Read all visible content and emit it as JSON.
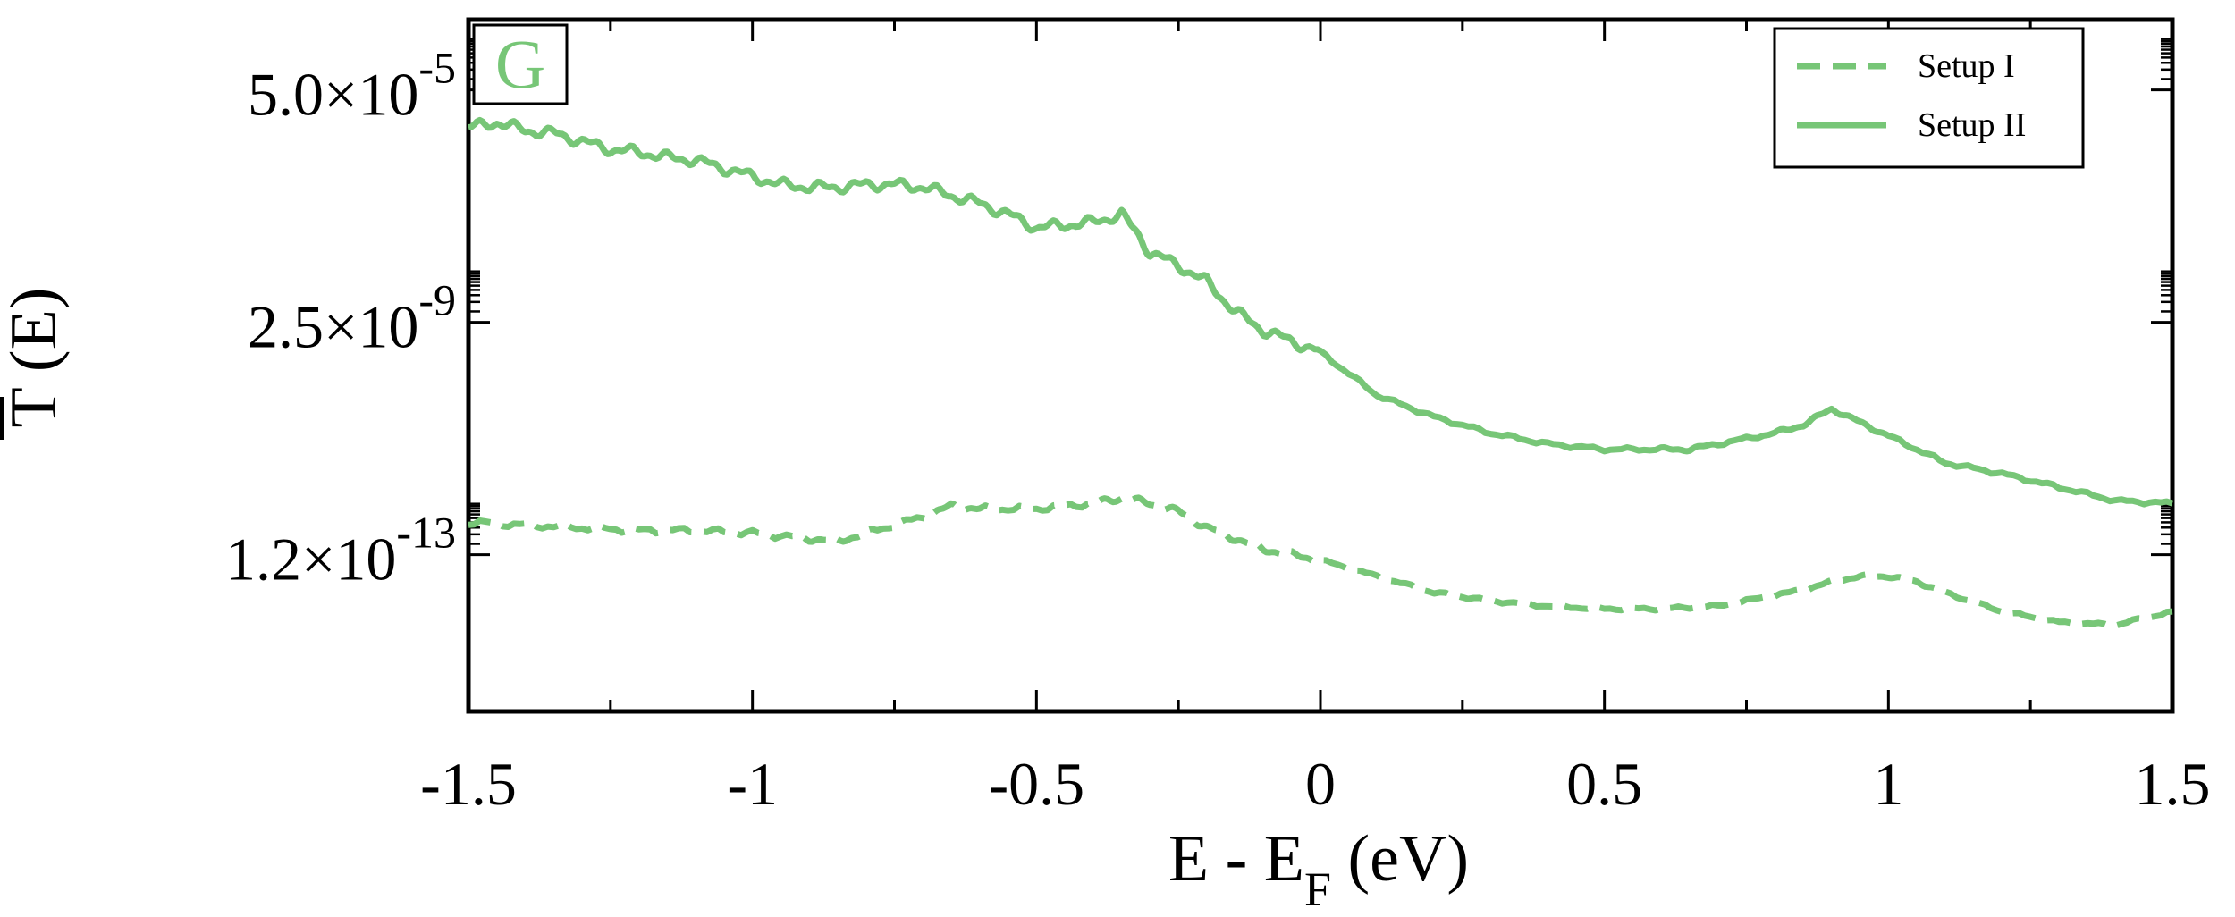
{
  "chart_data": {
    "type": "line",
    "panel_label": "G",
    "xlabel": {
      "main": "E - E",
      "sub": "F",
      "unit": " (eV)"
    },
    "ylabel": {
      "letter": "T",
      "arg": " (E)"
    },
    "xlim": [
      -1.5,
      1.5
    ],
    "ylim_log10": [
      -15.8,
      -3.0
    ],
    "y_scale": "log",
    "x_ticks": [
      -1.5,
      -1,
      -0.5,
      0,
      0.5,
      1,
      1.5
    ],
    "x_tick_labels": [
      "-1.5",
      "-1",
      "-0.5",
      "0",
      "0.5",
      "1",
      "1.5"
    ],
    "y_ticks": [
      {
        "value_log10": -4.3,
        "mantissa": "5.0×10",
        "exp": "-5"
      },
      {
        "value_log10": -8.6,
        "mantissa": "2.5×10",
        "exp": "-9"
      },
      {
        "value_log10": -12.9,
        "mantissa": "1.2×10",
        "exp": "-13"
      }
    ],
    "legend": {
      "position": "top-right"
    },
    "color": "#77c677",
    "series": [
      {
        "name": "Setup I",
        "style": "dashed",
        "x": [
          -1.5,
          -1.4,
          -1.3,
          -1.2,
          -1.1,
          -1.0,
          -0.9,
          -0.85,
          -0.8,
          -0.7,
          -0.65,
          -0.6,
          -0.5,
          -0.4,
          -0.35,
          -0.3,
          -0.25,
          -0.2,
          -0.15,
          -0.1,
          -0.05,
          0.0,
          0.1,
          0.2,
          0.3,
          0.4,
          0.5,
          0.6,
          0.7,
          0.8,
          0.85,
          0.9,
          0.95,
          1.0,
          1.05,
          1.1,
          1.2,
          1.3,
          1.4,
          1.5
        ],
        "y_log10": [
          -12.3,
          -12.35,
          -12.4,
          -12.45,
          -12.45,
          -12.5,
          -12.6,
          -12.65,
          -12.5,
          -12.2,
          -12.0,
          -12.05,
          -12.05,
          -11.95,
          -11.85,
          -11.95,
          -12.1,
          -12.4,
          -12.6,
          -12.8,
          -12.9,
          -13.0,
          -13.3,
          -13.6,
          -13.75,
          -13.85,
          -13.9,
          -13.9,
          -13.85,
          -13.65,
          -13.55,
          -13.4,
          -13.3,
          -13.3,
          -13.4,
          -13.6,
          -13.95,
          -14.15,
          -14.2,
          -13.95
        ]
      },
      {
        "name": "Setup II",
        "style": "solid",
        "x": [
          -1.5,
          -1.45,
          -1.4,
          -1.35,
          -1.3,
          -1.25,
          -1.2,
          -1.15,
          -1.1,
          -1.05,
          -1.0,
          -0.95,
          -0.9,
          -0.85,
          -0.8,
          -0.75,
          -0.7,
          -0.65,
          -0.6,
          -0.55,
          -0.5,
          -0.45,
          -0.4,
          -0.35,
          -0.32,
          -0.3,
          -0.25,
          -0.2,
          -0.15,
          -0.1,
          -0.05,
          0.0,
          0.1,
          0.2,
          0.3,
          0.4,
          0.5,
          0.6,
          0.65,
          0.7,
          0.8,
          0.85,
          0.9,
          0.95,
          1.0,
          1.1,
          1.2,
          1.3,
          1.4,
          1.5
        ],
        "y_log10": [
          -5.0,
          -4.9,
          -5.05,
          -5.1,
          -5.25,
          -5.4,
          -5.45,
          -5.55,
          -5.6,
          -5.75,
          -5.9,
          -6.05,
          -6.1,
          -6.1,
          -6.05,
          -6.05,
          -6.1,
          -6.25,
          -6.4,
          -6.6,
          -6.85,
          -6.8,
          -6.75,
          -6.6,
          -7.0,
          -7.3,
          -7.55,
          -7.85,
          -8.4,
          -8.75,
          -8.95,
          -9.15,
          -9.95,
          -10.35,
          -10.65,
          -10.85,
          -10.95,
          -10.95,
          -10.95,
          -10.85,
          -10.65,
          -10.5,
          -10.2,
          -10.45,
          -10.7,
          -11.2,
          -11.4,
          -11.65,
          -11.9,
          -11.95
        ]
      }
    ]
  }
}
